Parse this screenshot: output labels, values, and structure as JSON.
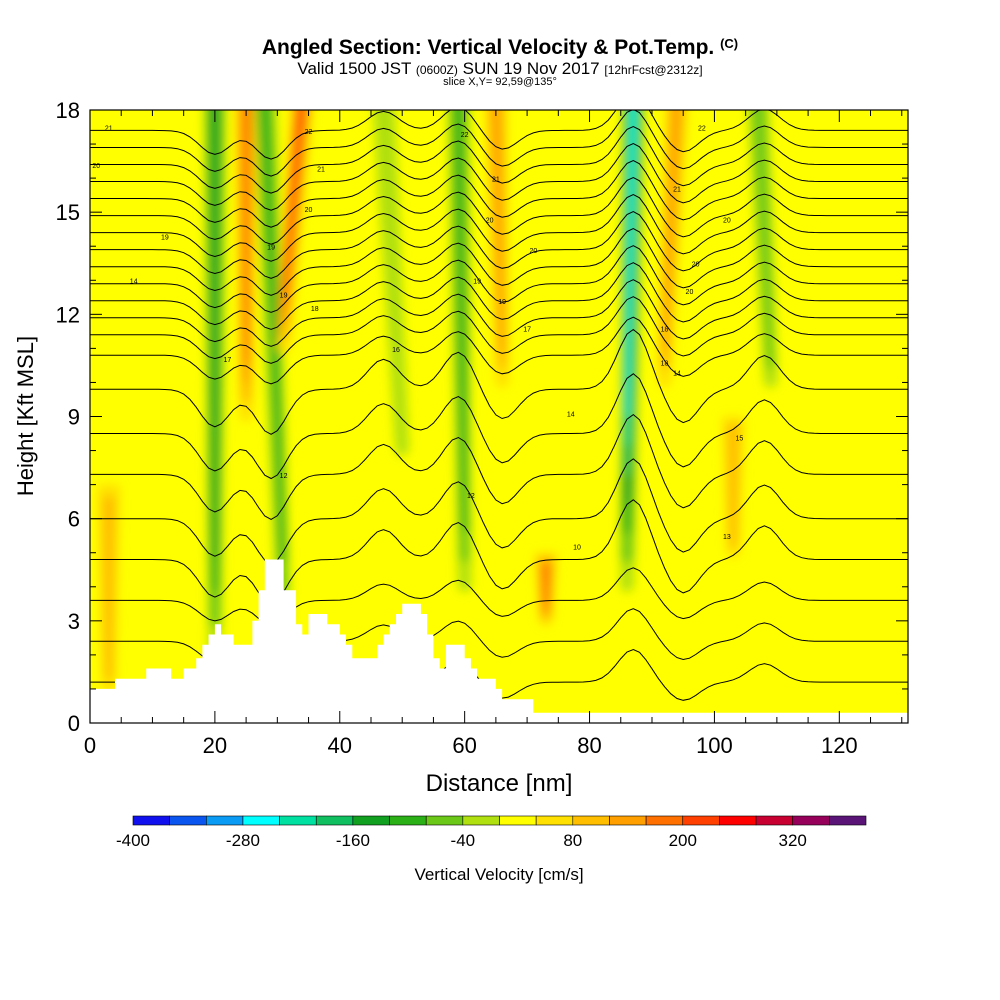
{
  "header": {
    "title": "Angled Section: Vertical Velocity & Pot.Temp.",
    "title_mark": "(C)",
    "valid_prefix": "Valid 1500 JST",
    "valid_utc": "(0600Z)",
    "valid_date": "SUN 19 Nov 2017",
    "forecast": "[12hrFcst@2312z]",
    "slice": "slice X,Y= 92,59@135°"
  },
  "chart_data": {
    "type": "heatmap",
    "xlabel": "Distance [nm]",
    "ylabel": "Height [Kft MSL]",
    "xlim": [
      0,
      131
    ],
    "ylim": [
      0,
      18
    ],
    "x_ticks": [
      0,
      20,
      40,
      60,
      80,
      100,
      120
    ],
    "y_ticks": [
      0,
      3,
      6,
      9,
      12,
      15,
      18
    ],
    "colorbar": {
      "label": "Vertical Velocity [cm/s]",
      "tick_labels": [
        "-400",
        "-280",
        "-160",
        "-40",
        "80",
        "200",
        "320"
      ],
      "bins": [
        -400,
        -360,
        -320,
        -280,
        -240,
        -200,
        -160,
        -120,
        -80,
        -40,
        0,
        40,
        80,
        120,
        160,
        200,
        240,
        280,
        320,
        360
      ],
      "colors": [
        "#1010ee",
        "#0a55f0",
        "#0a9bf5",
        "#00ffff",
        "#00e0a0",
        "#10c060",
        "#12a020",
        "#2cb018",
        "#6cc818",
        "#b0e010",
        "#ffff00",
        "#ffe000",
        "#ffbe00",
        "#ffa000",
        "#ff7000",
        "#ff4000",
        "#ff0000",
        "#c80032",
        "#96005a",
        "#5a1478"
      ]
    },
    "background_velocity": 10,
    "velocity_bands": [
      {
        "x_top": 20,
        "x_bottom": 20,
        "y_top": 18,
        "y_bottom": 2,
        "value": -170
      },
      {
        "x_top": 25,
        "x_bottom": 25,
        "y_top": 18,
        "y_bottom": 9,
        "value": 190
      },
      {
        "x_top": 28,
        "x_bottom": 31,
        "y_top": 18,
        "y_bottom": 3,
        "value": -150
      },
      {
        "x_top": 34,
        "x_bottom": 31,
        "y_top": 18,
        "y_bottom": 11,
        "value": 200
      },
      {
        "x_top": 47,
        "x_bottom": 50,
        "y_top": 18,
        "y_bottom": 8,
        "value": -60
      },
      {
        "x_top": 59,
        "x_bottom": 60,
        "y_top": 18,
        "y_bottom": 4,
        "value": -140
      },
      {
        "x_top": 65,
        "x_bottom": 66,
        "y_top": 18,
        "y_bottom": 10,
        "value": 150
      },
      {
        "x_top": 87,
        "x_bottom": 86,
        "y_top": 18,
        "y_bottom": 4,
        "value": -300
      },
      {
        "x_top": 94,
        "x_bottom": 92,
        "y_top": 18,
        "y_bottom": 10,
        "value": 150
      },
      {
        "x_top": 107,
        "x_bottom": 109,
        "y_top": 18,
        "y_bottom": 10,
        "value": -100
      },
      {
        "x_top": 3,
        "x_bottom": 3,
        "y_top": 7,
        "y_bottom": 1,
        "value": 90
      },
      {
        "x_top": 73,
        "x_bottom": 73,
        "y_top": 5,
        "y_bottom": 3,
        "value": 160
      },
      {
        "x_top": 103,
        "x_bottom": 103,
        "y_top": 9,
        "y_bottom": 5,
        "value": 80
      }
    ],
    "terrain": [
      [
        0,
        1
      ],
      [
        4,
        1
      ],
      [
        4,
        1.3
      ],
      [
        9,
        1.3
      ],
      [
        9,
        1.6
      ],
      [
        13,
        1.6
      ],
      [
        13,
        1.3
      ],
      [
        15,
        1.3
      ],
      [
        15,
        1.6
      ],
      [
        17,
        1.6
      ],
      [
        17,
        1.9
      ],
      [
        18,
        1.9
      ],
      [
        18,
        2.3
      ],
      [
        19,
        2.3
      ],
      [
        19,
        2.6
      ],
      [
        20,
        2.6
      ],
      [
        20,
        2.9
      ],
      [
        21,
        2.9
      ],
      [
        21,
        2.6
      ],
      [
        23,
        2.6
      ],
      [
        23,
        2.3
      ],
      [
        26,
        2.3
      ],
      [
        26,
        3.0
      ],
      [
        27,
        3.0
      ],
      [
        27,
        3.9
      ],
      [
        28,
        3.9
      ],
      [
        28,
        4.8
      ],
      [
        31,
        4.8
      ],
      [
        31,
        3.9
      ],
      [
        33,
        3.9
      ],
      [
        33,
        2.9
      ],
      [
        34,
        2.9
      ],
      [
        34,
        2.6
      ],
      [
        35,
        2.6
      ],
      [
        35,
        3.2
      ],
      [
        38,
        3.2
      ],
      [
        38,
        2.9
      ],
      [
        40,
        2.9
      ],
      [
        40,
        2.6
      ],
      [
        41,
        2.6
      ],
      [
        41,
        2.3
      ],
      [
        42,
        2.3
      ],
      [
        42,
        1.9
      ],
      [
        46,
        1.9
      ],
      [
        46,
        2.3
      ],
      [
        47,
        2.3
      ],
      [
        47,
        2.6
      ],
      [
        48,
        2.6
      ],
      [
        48,
        2.9
      ],
      [
        49,
        2.9
      ],
      [
        49,
        3.2
      ],
      [
        50,
        3.2
      ],
      [
        50,
        3.5
      ],
      [
        53,
        3.5
      ],
      [
        53,
        3.2
      ],
      [
        54,
        3.2
      ],
      [
        54,
        2.6
      ],
      [
        55,
        2.6
      ],
      [
        55,
        1.9
      ],
      [
        56,
        1.9
      ],
      [
        56,
        1.6
      ],
      [
        57,
        1.6
      ],
      [
        57,
        2.3
      ],
      [
        60,
        2.3
      ],
      [
        60,
        1.9
      ],
      [
        61,
        1.9
      ],
      [
        61,
        1.6
      ],
      [
        62,
        1.6
      ],
      [
        62,
        1.3
      ],
      [
        65,
        1.3
      ],
      [
        65,
        1.0
      ],
      [
        66,
        1.0
      ],
      [
        66,
        0.7
      ],
      [
        71,
        0.7
      ],
      [
        71,
        0.3
      ],
      [
        131,
        0.3
      ]
    ],
    "theta_levels": [
      1.2,
      2.4,
      3.6,
      4.8,
      6.0,
      7.3,
      8.5,
      9.8,
      10.8,
      11.4,
      11.9,
      12.4,
      12.9,
      13.4,
      13.9,
      14.4,
      14.9,
      15.4,
      15.9,
      16.4,
      16.9,
      17.4
    ],
    "contour_labels": [
      {
        "text": "10",
        "x": 78,
        "y": 5.1
      },
      {
        "text": "12",
        "x": 61,
        "y": 6.6
      },
      {
        "text": "12",
        "x": 31,
        "y": 7.2
      },
      {
        "text": "13",
        "x": 102,
        "y": 5.4
      },
      {
        "text": "14",
        "x": 77,
        "y": 9.0
      },
      {
        "text": "15",
        "x": 104,
        "y": 8.3
      },
      {
        "text": "16",
        "x": 49,
        "y": 10.9
      },
      {
        "text": "17",
        "x": 22,
        "y": 10.6
      },
      {
        "text": "17",
        "x": 70,
        "y": 11.5
      },
      {
        "text": "18",
        "x": 92,
        "y": 11.5
      },
      {
        "text": "18",
        "x": 92,
        "y": 10.5
      },
      {
        "text": "14",
        "x": 94,
        "y": 10.2
      },
      {
        "text": "18",
        "x": 36,
        "y": 12.1
      },
      {
        "text": "19",
        "x": 66,
        "y": 12.3
      },
      {
        "text": "14",
        "x": 7,
        "y": 12.9
      },
      {
        "text": "19",
        "x": 31,
        "y": 12.5
      },
      {
        "text": "19",
        "x": 62,
        "y": 12.9
      },
      {
        "text": "19",
        "x": 29,
        "y": 13.9
      },
      {
        "text": "20",
        "x": 71,
        "y": 13.8
      },
      {
        "text": "19",
        "x": 12,
        "y": 14.2
      },
      {
        "text": "20",
        "x": 97,
        "y": 13.4
      },
      {
        "text": "20",
        "x": 96,
        "y": 12.6
      },
      {
        "text": "20",
        "x": 35,
        "y": 15.0
      },
      {
        "text": "20",
        "x": 64,
        "y": 14.7
      },
      {
        "text": "20",
        "x": 102,
        "y": 14.7
      },
      {
        "text": "21",
        "x": 37,
        "y": 16.2
      },
      {
        "text": "21",
        "x": 65,
        "y": 15.9
      },
      {
        "text": "21",
        "x": 94,
        "y": 15.6
      },
      {
        "text": "20",
        "x": 1,
        "y": 16.3
      },
      {
        "text": "21",
        "x": 3,
        "y": 17.4
      },
      {
        "text": "22",
        "x": 35,
        "y": 17.3
      },
      {
        "text": "22",
        "x": 60,
        "y": 17.2
      },
      {
        "text": "22",
        "x": 98,
        "y": 17.4
      }
    ]
  }
}
